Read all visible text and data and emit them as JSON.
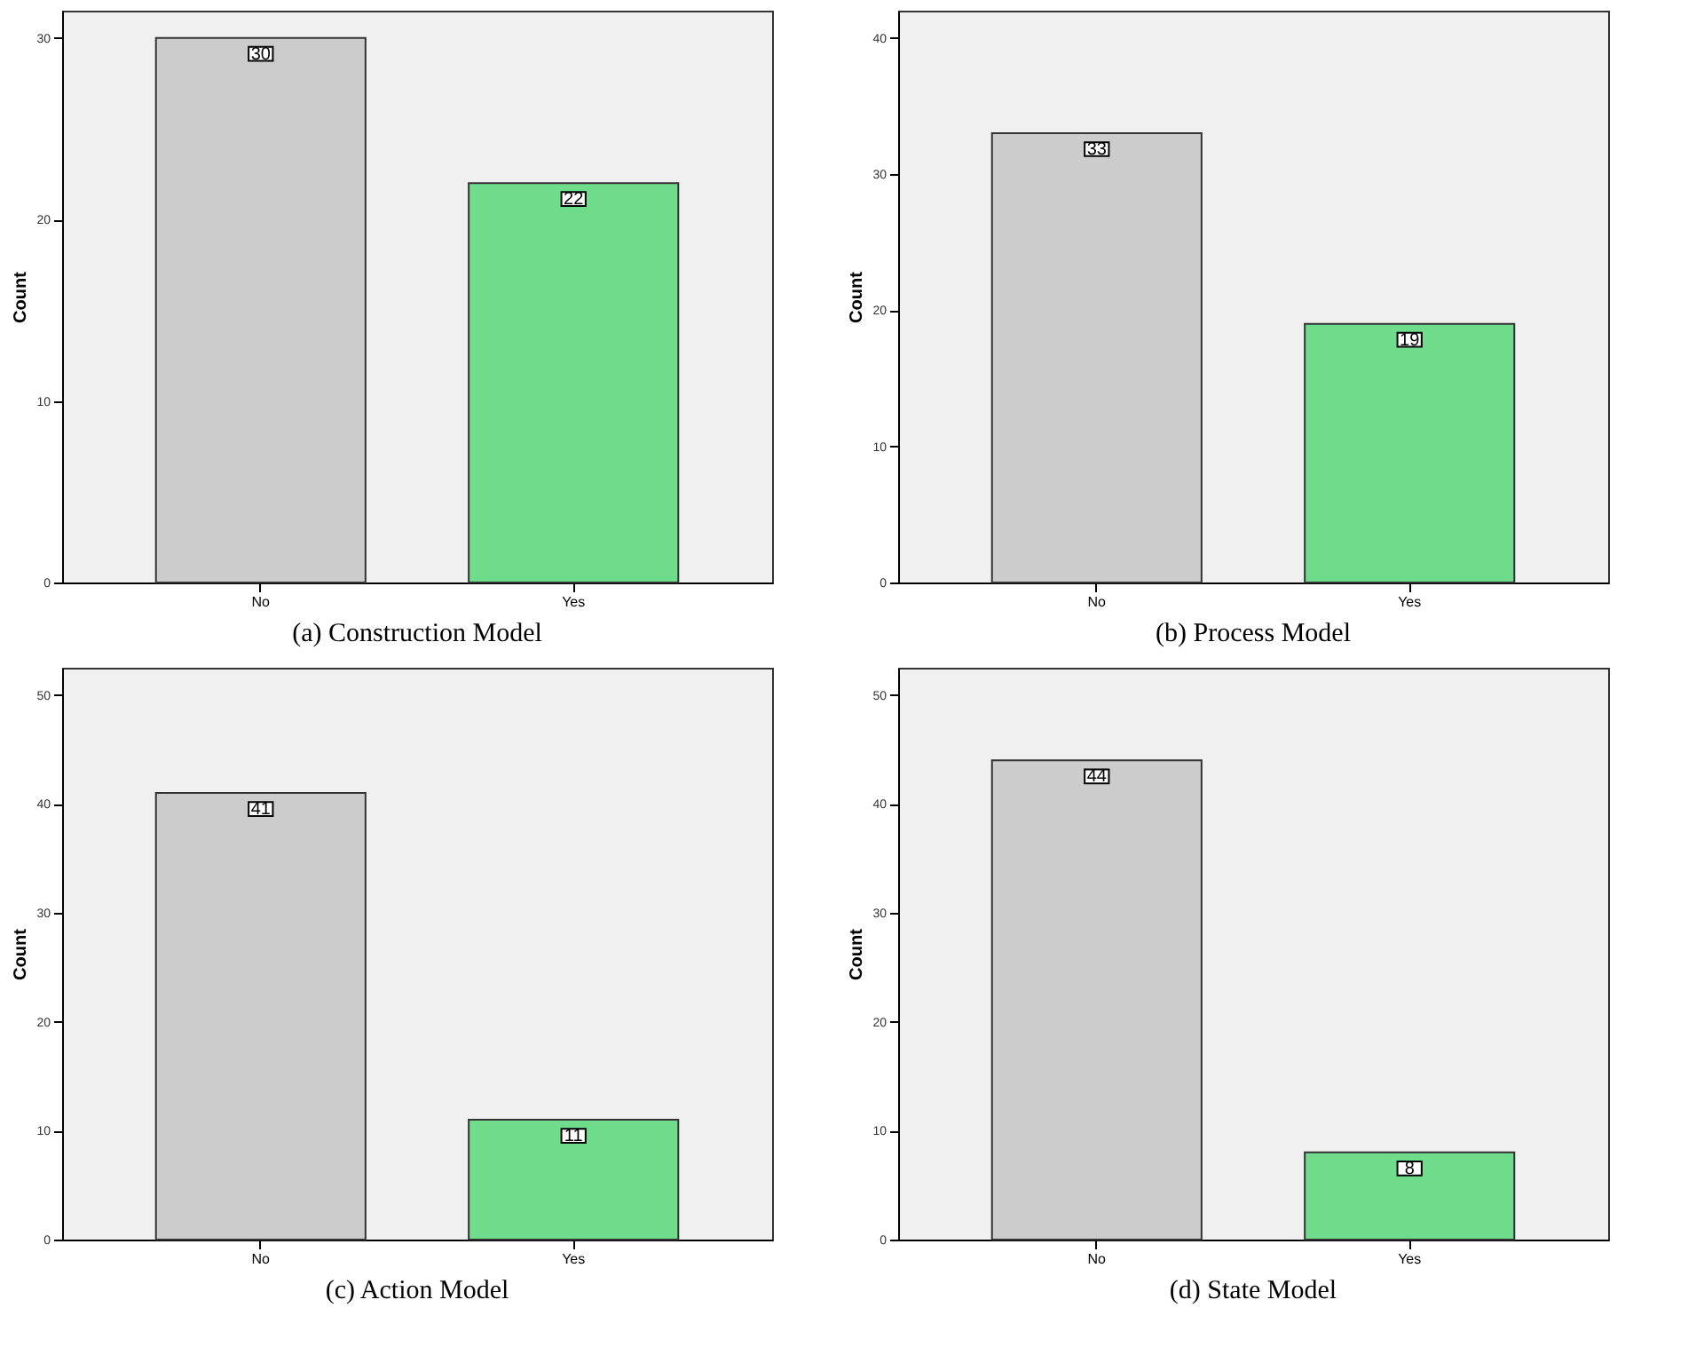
{
  "chart_data": [
    {
      "type": "bar",
      "title": "(a) Construction Model",
      "ylabel": "Count",
      "categories": [
        "No",
        "Yes"
      ],
      "values": [
        30,
        22
      ],
      "colors": [
        "#cccccc",
        "#6fdc8c"
      ],
      "ylim": [
        0,
        31.5
      ],
      "yticks": [
        0,
        10,
        20,
        30
      ],
      "data_labels": true,
      "grid": false
    },
    {
      "type": "bar",
      "title": "(b) Process Model",
      "ylabel": "Count",
      "categories": [
        "No",
        "Yes"
      ],
      "values": [
        33,
        19
      ],
      "colors": [
        "#cccccc",
        "#6fdc8c"
      ],
      "ylim": [
        0,
        42
      ],
      "yticks": [
        0,
        10,
        20,
        30,
        40
      ],
      "data_labels": true,
      "grid": false
    },
    {
      "type": "bar",
      "title": "(c) Action Model",
      "ylabel": "Count",
      "categories": [
        "No",
        "Yes"
      ],
      "values": [
        41,
        11
      ],
      "colors": [
        "#cccccc",
        "#6fdc8c"
      ],
      "ylim": [
        0,
        52.5
      ],
      "yticks": [
        0,
        10,
        20,
        30,
        40,
        50
      ],
      "data_labels": true,
      "grid": false
    },
    {
      "type": "bar",
      "title": "(d) State Model",
      "ylabel": "Count",
      "categories": [
        "No",
        "Yes"
      ],
      "values": [
        44,
        8
      ],
      "colors": [
        "#cccccc",
        "#6fdc8c"
      ],
      "ylim": [
        0,
        52.5
      ],
      "yticks": [
        0,
        10,
        20,
        30,
        40,
        50
      ],
      "data_labels": true,
      "grid": false
    }
  ]
}
